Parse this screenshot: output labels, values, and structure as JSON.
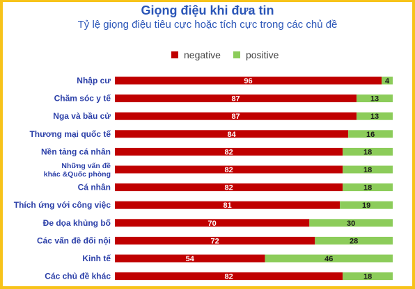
{
  "chart_data": {
    "type": "bar",
    "stacked": true,
    "orientation": "horizontal",
    "title": "Giọng điệu khi đưa tin",
    "subtitle": "Tỷ lệ giọng điệu tiêu cực hoặc tích cực trong các chủ đề",
    "legend_position": "top",
    "categories": [
      "Nhập cư",
      "Chăm sóc y tế",
      "Nga và bầu cử",
      "Thương mại quốc tế",
      "Nền tảng cá nhân",
      "Những vấn đề khác &Quốc phòng",
      "Cá nhân",
      "Thích ứng với công việc",
      "Đe dọa khủng bố",
      "Các vấn đề đối nội",
      "Kinh tế",
      "Các chủ đề khác"
    ],
    "series": [
      {
        "name": "negative",
        "color": "#c00000",
        "values": [
          96,
          87,
          87,
          84,
          82,
          82,
          82,
          81,
          70,
          72,
          54,
          82
        ]
      },
      {
        "name": "positive",
        "color": "#8ccc5a",
        "values": [
          4,
          13,
          13,
          16,
          18,
          18,
          18,
          19,
          30,
          28,
          46,
          18
        ]
      }
    ],
    "xlim": [
      0,
      100
    ],
    "grid": false
  }
}
